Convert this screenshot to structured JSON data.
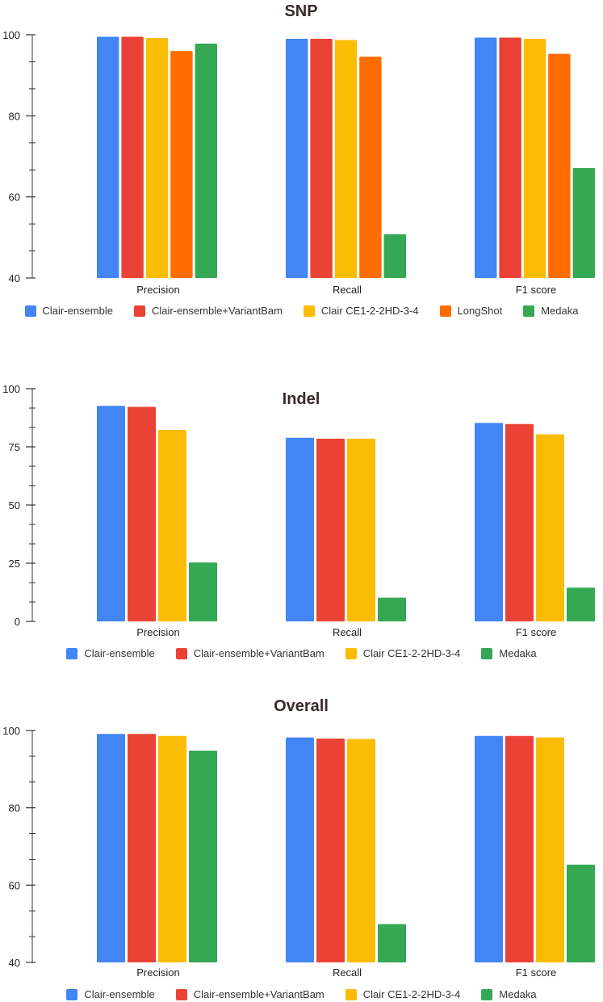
{
  "colors": {
    "Clair-ensemble": "#4285f4",
    "Clair-ensemble+VariantBam": "#ea4335",
    "Clair CE1-2-2HD-3-4": "#fbbc04",
    "LongShot": "#ff6d01",
    "Medaka": "#34a853"
  },
  "chart_data": [
    {
      "type": "bar",
      "title": "SNP",
      "categories": [
        "Precision",
        "Recall",
        "F1 score"
      ],
      "ylim": [
        40,
        100
      ],
      "yticks": [
        40,
        60,
        80,
        100
      ],
      "grid": false,
      "legend_position": "bottom",
      "series": [
        {
          "name": "Clair-ensemble",
          "values": [
            99.5,
            99.0,
            99.3
          ]
        },
        {
          "name": "Clair-ensemble+VariantBam",
          "values": [
            99.5,
            99.0,
            99.3
          ]
        },
        {
          "name": "Clair CE1-2-2HD-3-4",
          "values": [
            99.2,
            98.7,
            99.0
          ]
        },
        {
          "name": "LongShot",
          "values": [
            96.0,
            94.6,
            95.3
          ]
        },
        {
          "name": "Medaka",
          "values": [
            97.8,
            50.8,
            67.1
          ]
        }
      ]
    },
    {
      "type": "bar",
      "title": "Indel",
      "categories": [
        "Precision",
        "Recall",
        "F1 score"
      ],
      "ylim": [
        0,
        100
      ],
      "yticks": [
        0,
        25,
        50,
        75,
        100
      ],
      "grid": false,
      "legend_position": "bottom",
      "series": [
        {
          "name": "Clair-ensemble",
          "values": [
            92.6,
            78.9,
            85.3
          ]
        },
        {
          "name": "Clair-ensemble+VariantBam",
          "values": [
            92.2,
            78.5,
            84.8
          ]
        },
        {
          "name": "Clair CE1-2-2HD-3-4",
          "values": [
            82.3,
            78.5,
            80.4
          ]
        },
        {
          "name": "Medaka",
          "values": [
            25.3,
            10.2,
            14.5
          ]
        }
      ]
    },
    {
      "type": "bar",
      "title": "Overall",
      "categories": [
        "Precision",
        "Recall",
        "F1 score"
      ],
      "ylim": [
        40,
        100
      ],
      "yticks": [
        40,
        60,
        80,
        100
      ],
      "grid": false,
      "legend_position": "bottom",
      "series": [
        {
          "name": "Clair-ensemble",
          "values": [
            99.1,
            98.2,
            98.6
          ]
        },
        {
          "name": "Clair-ensemble+VariantBam",
          "values": [
            99.1,
            97.9,
            98.6
          ]
        },
        {
          "name": "Clair CE1-2-2HD-3-4",
          "values": [
            98.6,
            97.8,
            98.2
          ]
        },
        {
          "name": "Medaka",
          "values": [
            94.8,
            49.9,
            65.3
          ]
        }
      ]
    }
  ]
}
